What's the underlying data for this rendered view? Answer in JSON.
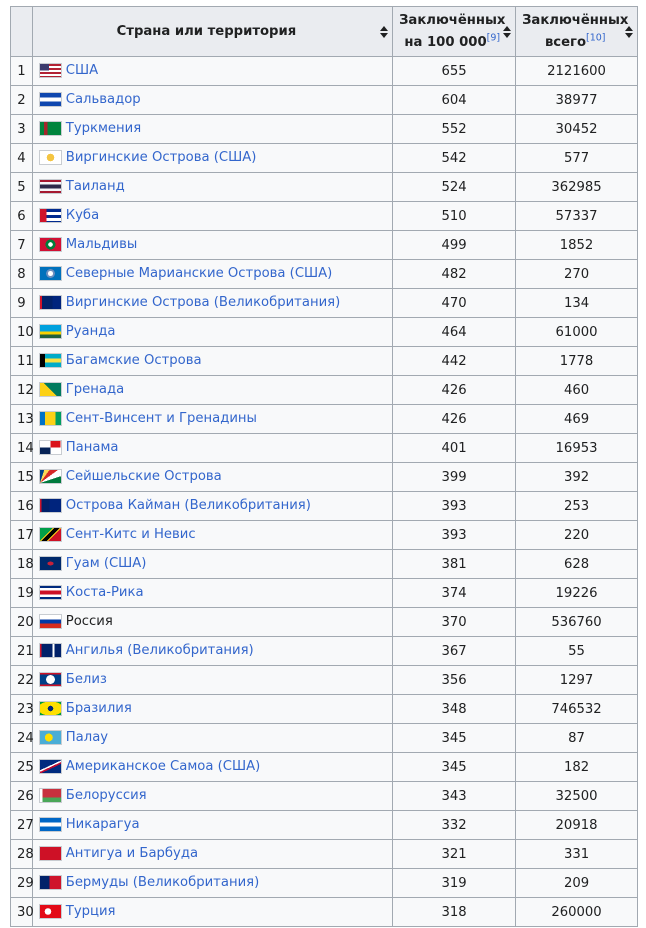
{
  "header": {
    "country": "Страна или территория",
    "rate_line1": "Заключённых",
    "rate_line2": "на 100 000",
    "rate_ref": "[9]",
    "total_line1": "Заключённых",
    "total_line2": "всего",
    "total_ref": "[10]"
  },
  "rows": [
    {
      "n": "1",
      "country": "США",
      "rate": "655",
      "total": "2121600",
      "flag": "linear-gradient(to bottom, #3c3b6e 0 50%, transparent 50%) 0 0/45% 100% no-repeat, repeating-linear-gradient(to bottom, #b22234 0 2px, #ffffff 2px 4px)"
    },
    {
      "n": "2",
      "country": "Сальвадор",
      "rate": "604",
      "total": "38977",
      "flag": "linear-gradient(to bottom, #0f47af 0 33%, #ffffff 33% 67%, #0f47af 67%)"
    },
    {
      "n": "3",
      "country": "Туркмения",
      "rate": "552",
      "total": "30452",
      "flag": "linear-gradient(to right, #00843d 0 20%, #a4262c 20% 35%, #00843d 35%)"
    },
    {
      "n": "4",
      "country": "Виргинские Острова (США)",
      "rate": "542",
      "total": "577",
      "flag": "radial-gradient(circle at 50% 50%, #f4c542 0 30%, #ffffff 31%)"
    },
    {
      "n": "5",
      "country": "Таиланд",
      "rate": "524",
      "total": "362985",
      "flag": "linear-gradient(to bottom, #a51931 0 17%, #f4f5f8 17% 33%, #2d2a4a 33% 67%, #f4f5f8 67% 83%, #a51931 83%)"
    },
    {
      "n": "6",
      "country": "Куба",
      "rate": "510",
      "total": "57337",
      "flag": "linear-gradient(to right, #cf142b 0 30%, transparent 30%), repeating-linear-gradient(to bottom, #002a8f 0 3px, #ffffff 3px 6px)"
    },
    {
      "n": "7",
      "country": "Мальдивы",
      "rate": "499",
      "total": "1852",
      "flag": "radial-gradient(circle at 50% 50%, #ffffff 0 18%, #007e3a 19% 40%, #d21034 41%)"
    },
    {
      "n": "8",
      "country": "Северные Марианские Острова (США)",
      "rate": "482",
      "total": "270",
      "flag": "radial-gradient(circle at 50% 50%, #ffffff 0 20%, #6c8ebf 21% 35%, #0071bc 36%)"
    },
    {
      "n": "9",
      "country": "Виргинские Острова (Великобритания)",
      "rate": "470",
      "total": "134",
      "flag": "linear-gradient(to right, #cf142b 0 10%, #012169 10% 45%, #012169 45% 60%, #00247d 60%)"
    },
    {
      "n": "10",
      "country": "Руанда",
      "rate": "464",
      "total": "61000",
      "flag": "linear-gradient(to bottom, #00a1de 0 50%, #fad201 50% 75%, #20603d 75%)"
    },
    {
      "n": "11",
      "country": "Багамские Острова",
      "rate": "442",
      "total": "1778",
      "flag": "linear-gradient(to right, #000000 0 25%, transparent 25%), linear-gradient(to bottom, #00abc9 0 33%, #fae042 33% 67%, #00abc9 67%)"
    },
    {
      "n": "12",
      "country": "Гренада",
      "rate": "426",
      "total": "460",
      "flag": "linear-gradient(45deg, #fcd116 0 50%, #007a5e 50%)"
    },
    {
      "n": "13",
      "country": "Сент-Винсент и Гренадины",
      "rate": "426",
      "total": "469",
      "flag": "linear-gradient(to right, #0072c6 0 25%, #fcd116 25% 75%, #009e60 75%)"
    },
    {
      "n": "14",
      "country": "Панама",
      "rate": "401",
      "total": "16953",
      "flag": "linear-gradient(to bottom, #ffffff 0 50%, transparent 50%) 0 0/50% 100% no-repeat, linear-gradient(to bottom, #da121a 0 50%, transparent 50%) 100% 0/50% 100% no-repeat, linear-gradient(to bottom, transparent 0 50%, #072357 50%) 0 0/50% 100% no-repeat, #ffffff"
    },
    {
      "n": "15",
      "country": "Сейшельские Острова",
      "rate": "399",
      "total": "392",
      "flag": "conic-gradient(from 0deg at 0% 100%, #003f87 0 18deg, #fcd856 18deg 36deg, #d62828 36deg 54deg, #ffffff 54deg 72deg, #007a3d 72deg 90deg)"
    },
    {
      "n": "16",
      "country": "Острова Кайман (Великобритания)",
      "rate": "393",
      "total": "253",
      "flag": "linear-gradient(to right, #cf142b 0 8%, #012169 8% 45%, #00247d 45%)"
    },
    {
      "n": "17",
      "country": "Сент-Китс и Невис",
      "rate": "393",
      "total": "220",
      "flag": "linear-gradient(135deg, #009e49 0 38%, #fcd116 38% 42%, #000000 42% 58%, #fcd116 58% 62%, #ce1126 62%)"
    },
    {
      "n": "18",
      "country": "Гуам (США)",
      "rate": "381",
      "total": "628",
      "flag": "radial-gradient(ellipse at 50% 50%, #c62139 0 20%, #00296b 21%)"
    },
    {
      "n": "19",
      "country": "Коста-Рика",
      "rate": "374",
      "total": "19226",
      "flag": "linear-gradient(to bottom, #002b7f 0 17%, #ffffff 17% 33%, #ce1126 33% 67%, #ffffff 67% 83%, #002b7f 83%)"
    },
    {
      "n": "20",
      "country": "Россия",
      "rate": "370",
      "total": "536760",
      "flag": "linear-gradient(to bottom, #ffffff 0 33%, #0039a6 33% 67%, #d52b1e 67%)"
    },
    {
      "n": "21",
      "country": "Ангилья (Великобритания)",
      "rate": "367",
      "total": "55",
      "flag": "linear-gradient(to right, #cf142b 0 8%, #012169 8% 60%, #ffffff 60% 70%, #012169 70%)"
    },
    {
      "n": "22",
      "country": "Белиз",
      "rate": "356",
      "total": "1297",
      "flag": "linear-gradient(to bottom, #ce1126 0 10%, transparent 10% 90%, #ce1126 90%), radial-gradient(circle at 50% 50%, #ffffff 0 35%, #003f87 36%)"
    },
    {
      "n": "23",
      "country": "Бразилия",
      "rate": "348",
      "total": "746532",
      "flag": "radial-gradient(circle at 50% 50%, #002776 0 22%, transparent 23%), radial-gradient(ellipse 60% 55% at 50% 50%, #fedf00 0 98%, transparent 100%), #009c3b"
    },
    {
      "n": "24",
      "country": "Палау",
      "rate": "345",
      "total": "87",
      "flag": "radial-gradient(circle at 42% 50%, #ffde00 0 28%, #4aadd6 29%)"
    },
    {
      "n": "25",
      "country": "Американское Самоа (США)",
      "rate": "345",
      "total": "182",
      "flag": "linear-gradient(155deg, #002b7f 0 45%, #ffffff 45% 52%, #bf0a30 52% 60%, #002b7f 60%)"
    },
    {
      "n": "26",
      "country": "Белоруссия",
      "rate": "343",
      "total": "32500",
      "flag": "linear-gradient(to right, #ffffff 0 12%, transparent 12%), linear-gradient(to bottom, #c8313e 0 67%, #4aa657 67%)"
    },
    {
      "n": "27",
      "country": "Никарагуа",
      "rate": "332",
      "total": "20918",
      "flag": "linear-gradient(to bottom, #0067c6 0 33%, #ffffff 33% 67%, #0067c6 67%)"
    },
    {
      "n": "28",
      "country": "Антигуа и Барбуда",
      "rate": "321",
      "total": "331",
      "flag": "conic-gradient(from 160deg at 50% 100%, #000000 0 20deg, #0072c6 20deg 28deg, #ffffff 28deg 40deg, transparent 40deg), #ce1126"
    },
    {
      "n": "29",
      "country": "Бермуды (Великобритания)",
      "rate": "319",
      "total": "209",
      "flag": "linear-gradient(to right, #012169 0 45%, #cf142b 45%)"
    },
    {
      "n": "30",
      "country": "Турция",
      "rate": "318",
      "total": "260000",
      "flag": "radial-gradient(circle at 38% 50%, #ffffff 0 22%, transparent 23%), #e30a17"
    }
  ],
  "visited_rows": [
    "20"
  ]
}
